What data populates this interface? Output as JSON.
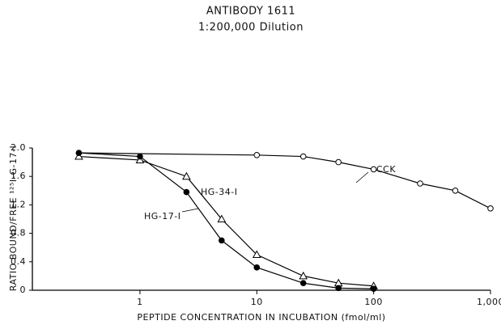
{
  "chart_data": {
    "type": "line",
    "title": "ANTIBODY 1611",
    "subtitle": "1:200,000 Dilution",
    "x_label": "PEPTIDE CONCENTRATION IN INCUBATION (fmol/ml)",
    "y_label": "RATIO BOUND/FREE ¹²⁵I-G-17-I",
    "log_x": true,
    "xlim": [
      0.12,
      1000
    ],
    "xticks": [
      1,
      10,
      100,
      {
        "value": 1000,
        "label": "1,000"
      }
    ],
    "ylim": [
      0,
      2.0
    ],
    "yticks": [
      0,
      {
        "value": 0.4,
        "label": "0.4"
      },
      {
        "value": 0.8,
        "label": "0.8"
      },
      {
        "value": 1.2,
        "label": "1.2"
      },
      {
        "value": 1.6,
        "label": "1.6"
      },
      {
        "value": 2,
        "label": "2.0"
      }
    ],
    "grid": false,
    "series": [
      {
        "name": "CCK",
        "color": "#000000",
        "marker": "circle-open",
        "x": [
          0.3,
          10,
          25,
          50,
          100,
          250,
          500,
          1000
        ],
        "values": [
          1.93,
          1.9,
          1.88,
          1.8,
          1.7,
          1.5,
          1.4,
          1.15
        ]
      },
      {
        "name": "HG-34-I",
        "color": "#000000",
        "marker": "triangle-open",
        "x": [
          0.3,
          1,
          2.5,
          5,
          10,
          25,
          50,
          100
        ],
        "values": [
          1.88,
          1.83,
          1.6,
          1.0,
          0.5,
          0.2,
          0.1,
          0.06
        ]
      },
      {
        "name": "HG-17-I",
        "color": "#000000",
        "marker": "circle-filled",
        "x": [
          0.3,
          1,
          2.5,
          5,
          10,
          25,
          50,
          100
        ],
        "values": [
          1.93,
          1.88,
          1.38,
          0.7,
          0.32,
          0.1,
          0.03,
          0.02
        ]
      }
    ]
  }
}
